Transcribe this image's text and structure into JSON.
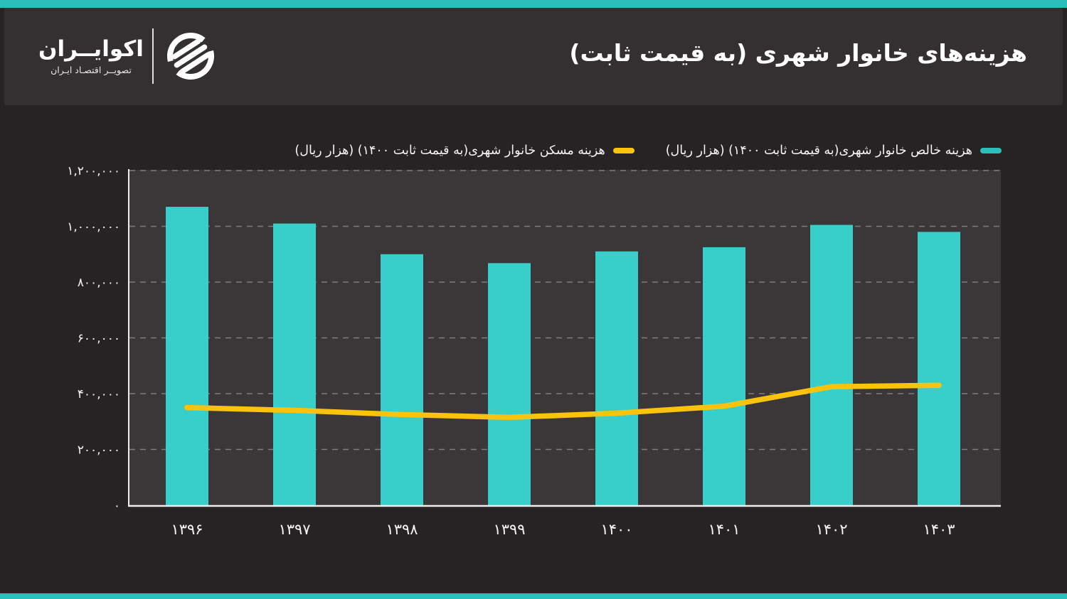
{
  "colors": {
    "accent_teal": "#2CBFB9",
    "bar_teal": "#38CFCA",
    "line_yellow": "#FCC30D",
    "page_bg": "#272324",
    "header_bg": "#343031",
    "plot_bg": "#3B3738",
    "grid": "#b9b6b6",
    "axis": "#f0eeee",
    "text": "#f6f4f4"
  },
  "header": {
    "title": "هزینه‌های خانوار شهری (به قیمت ثابت)",
    "logo": {
      "name": "اکوایــران",
      "tagline": "تصویــر اقتصـاد ایـران"
    }
  },
  "legend": [
    {
      "label": "هزینه خالص خانوار  شهری(به قیمت ثابت ۱۴۰۰) (هزار ریال)",
      "color": "#2CBFB9",
      "series": "bars"
    },
    {
      "label": "هزینه مسکن خانوار شهری(به قیمت ثابت ۱۴۰۰) (هزار ریال)",
      "color": "#FCC30D",
      "series": "line"
    }
  ],
  "chart_data": {
    "type": "bar",
    "title": "هزینه‌های خانوار شهری (به قیمت ثابت)",
    "categories": [
      "۱۳۹۶",
      "۱۳۹۷",
      "۱۳۹۸",
      "۱۳۹۹",
      "۱۴۰۰",
      "۱۴۰۱",
      "۱۴۰۲",
      "۱۴۰۳"
    ],
    "series": [
      {
        "name": "هزینه خالص خانوار  شهری(به قیمت ثابت ۱۴۰۰) (هزار ریال)",
        "type": "bar",
        "color": "#38CFCA",
        "values": [
          1070000,
          1010000,
          900000,
          868000,
          910000,
          925000,
          1005000,
          980000
        ]
      },
      {
        "name": "هزینه مسکن خانوار شهری(به قیمت ثابت ۱۴۰۰) (هزار ریال)",
        "type": "line",
        "color": "#FCC30D",
        "values": [
          350000,
          340000,
          325000,
          315000,
          330000,
          355000,
          425000,
          430000
        ]
      }
    ],
    "xlabel": "",
    "ylabel": "",
    "ylim": [
      0,
      1200000
    ],
    "ytick_step": 200000,
    "ytick_labels": [
      "۰",
      "۲۰۰,۰۰۰",
      "۴۰۰,۰۰۰",
      "۶۰۰,۰۰۰",
      "۸۰۰,۰۰۰",
      "۱,۰۰۰,۰۰۰",
      "۱,۲۰۰,۰۰۰"
    ],
    "grid": "horizontal-dashed",
    "legend_position": "top-right"
  }
}
